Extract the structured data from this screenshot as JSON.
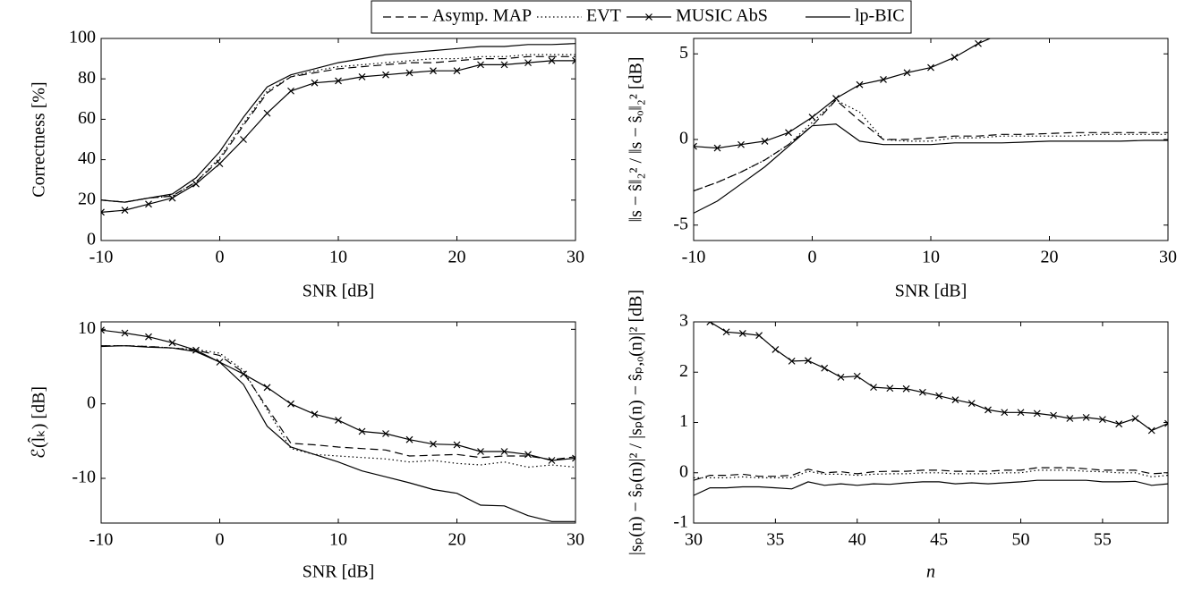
{
  "legend": [
    "Asymp. MAP",
    "EVT",
    "MUSIC AbS",
    "lp-BIC"
  ],
  "chart_data": [
    {
      "type": "line",
      "xlabel": "SNR [dB]",
      "ylabel": "Correctness [%]",
      "x": [
        -10,
        -8,
        -6,
        -4,
        -2,
        0,
        2,
        4,
        6,
        8,
        10,
        12,
        14,
        16,
        18,
        20,
        22,
        24,
        26,
        28,
        30
      ],
      "xlim": [
        -10,
        30
      ],
      "xticks": [
        -10,
        0,
        10,
        20,
        30
      ],
      "ylim": [
        0,
        100
      ],
      "yticks": [
        0,
        20,
        40,
        60,
        80,
        100
      ],
      "series": [
        {
          "color": "#000000",
          "dash": "dashed",
          "values": [
            20,
            19,
            21,
            22,
            29,
            40,
            57,
            73,
            81,
            83,
            85,
            86,
            87,
            88,
            88,
            89,
            90,
            90,
            91,
            91,
            91
          ]
        },
        {
          "color": "#000000",
          "dash": "dotted",
          "values": [
            20,
            19,
            21,
            22,
            29,
            41,
            58,
            74,
            81,
            84,
            86,
            87,
            88,
            89,
            90,
            90,
            91,
            91,
            92,
            92,
            92
          ]
        },
        {
          "color": "#000000",
          "dash": "solid",
          "marker": "x",
          "values": [
            14,
            15,
            18,
            21,
            28,
            38,
            50,
            63,
            74,
            78,
            79,
            81,
            82,
            83,
            84,
            84,
            87,
            87,
            88,
            89,
            89
          ]
        },
        {
          "color": "#000000",
          "dash": "solid",
          "values": [
            20,
            19,
            21,
            23,
            31,
            44,
            61,
            76,
            82,
            85,
            88,
            90,
            92,
            93,
            94,
            95,
            96,
            96,
            97,
            97,
            97.5
          ]
        }
      ]
    },
    {
      "type": "line",
      "xlabel": "SNR [dB]",
      "ylabel": "‖s − ŝ‖₂² / ‖s − ŝₒ‖₂² [dB]",
      "x": [
        -10,
        -8,
        -6,
        -4,
        -2,
        0,
        2,
        4,
        6,
        8,
        10,
        12,
        14,
        16,
        18,
        20,
        22,
        24,
        26,
        28,
        30
      ],
      "xlim": [
        -10,
        30
      ],
      "xticks": [
        -10,
        0,
        10,
        20,
        30
      ],
      "ylim": [
        -5.9,
        5.9
      ],
      "yticks": [
        -5,
        0,
        5
      ],
      "series": [
        {
          "color": "#000000",
          "dash": "dashed",
          "values": [
            -3.0,
            -2.5,
            -1.9,
            -1.2,
            -0.3,
            0.8,
            2.3,
            1.1,
            0,
            0,
            0.1,
            0.2,
            0.2,
            0.3,
            0.3,
            0.35,
            0.4,
            0.4,
            0.4,
            0.4,
            0.4
          ]
        },
        {
          "color": "#000000",
          "dash": "dotted",
          "values": [
            -3.0,
            -2.5,
            -1.9,
            -1.2,
            -0.3,
            1.0,
            2.3,
            1.6,
            0,
            -0.1,
            -0.1,
            0.1,
            0.1,
            0.2,
            0.2,
            0.2,
            0.2,
            0.3,
            0.3,
            0.3,
            0.3
          ]
        },
        {
          "color": "#000000",
          "dash": "solid",
          "marker": "x",
          "values": [
            -0.4,
            -0.5,
            -0.3,
            -0.1,
            0.4,
            1.3,
            2.4,
            3.2,
            3.5,
            3.9,
            4.2,
            4.8,
            5.6,
            6.2,
            null,
            null,
            null,
            null,
            null,
            null,
            null
          ]
        },
        {
          "color": "#000000",
          "dash": "solid",
          "values": [
            -4.3,
            -3.6,
            -2.6,
            -1.6,
            -0.4,
            0.8,
            0.9,
            -0.1,
            -0.3,
            -0.3,
            -0.3,
            -0.2,
            -0.2,
            -0.2,
            -0.15,
            -0.1,
            -0.1,
            -0.1,
            -0.1,
            -0.05,
            -0.05
          ]
        }
      ]
    },
    {
      "type": "line",
      "xlabel": "SNR [dB]",
      "ylabel": "ℰ(l̂ₖ) [dB]",
      "x": [
        -10,
        -8,
        -6,
        -4,
        -2,
        0,
        2,
        4,
        6,
        8,
        10,
        12,
        14,
        16,
        18,
        20,
        22,
        24,
        26,
        28,
        30
      ],
      "xlim": [
        -10,
        30
      ],
      "xticks": [
        -10,
        0,
        10,
        20,
        30
      ],
      "ylim": [
        -16,
        11
      ],
      "yticks": [
        -10,
        0,
        10
      ],
      "series": [
        {
          "color": "#000000",
          "dash": "dashed",
          "values": [
            7.8,
            7.8,
            7.7,
            7.5,
            7.2,
            6.5,
            4.2,
            -0.5,
            -5.3,
            -5.5,
            -5.8,
            -6.0,
            -6.2,
            -7.0,
            -6.9,
            -6.8,
            -7.2,
            -7.0,
            -7.0,
            -7.5,
            -7.1
          ]
        },
        {
          "color": "#000000",
          "dash": "dotted",
          "values": [
            7.8,
            7.8,
            7.7,
            7.5,
            7.3,
            6.8,
            4.5,
            -0.8,
            -6.0,
            -6.8,
            -7.0,
            -7.2,
            -7.4,
            -7.8,
            -7.6,
            -8.0,
            -8.2,
            -7.8,
            -8.5,
            -8.2,
            -8.5
          ]
        },
        {
          "color": "#000000",
          "dash": "solid",
          "marker": "x",
          "values": [
            9.9,
            9.5,
            9.0,
            8.2,
            7.2,
            5.6,
            4.0,
            2.2,
            0,
            -1.4,
            -2.2,
            -3.7,
            -4.0,
            -4.8,
            -5.4,
            -5.5,
            -6.4,
            -6.4,
            -6.8,
            -7.6,
            -7.3
          ]
        },
        {
          "color": "#000000",
          "dash": "solid",
          "values": [
            7.7,
            7.8,
            7.6,
            7.5,
            7.0,
            5.6,
            2.6,
            -3.0,
            -5.8,
            -6.8,
            -7.8,
            -9.0,
            -9.8,
            -10.6,
            -11.5,
            -12.0,
            -13.6,
            -13.7,
            -15.0,
            -15.8,
            -15.8
          ]
        }
      ]
    },
    {
      "type": "line",
      "xlabel": "n",
      "ylabel": "|sₚ(n) − ŝₚ(n)|² / |sₚ(n) − ŝₚ,ₒ(n)|² [dB]",
      "x": [
        30,
        31,
        32,
        33,
        34,
        35,
        36,
        37,
        38,
        39,
        40,
        41,
        42,
        43,
        44,
        45,
        46,
        47,
        48,
        49,
        50,
        51,
        52,
        53,
        54,
        55,
        56,
        57,
        58,
        59
      ],
      "xlim": [
        30,
        59
      ],
      "xticks": [
        30,
        35,
        40,
        45,
        50,
        55
      ],
      "ylim": [
        -1,
        3
      ],
      "yticks": [
        -1,
        0,
        1,
        2,
        3
      ],
      "series": [
        {
          "color": "#000000",
          "dash": "dashed",
          "values": [
            -0.15,
            -0.05,
            -0.05,
            -0.03,
            -0.07,
            -0.07,
            -0.05,
            0.07,
            0,
            0.02,
            -0.02,
            0.02,
            0.03,
            0.03,
            0.05,
            0.05,
            0.03,
            0.03,
            0.03,
            0.05,
            0.05,
            0.1,
            0.1,
            0.1,
            0.08,
            0.05,
            0.05,
            0.05,
            -0.02,
            0
          ]
        },
        {
          "color": "#000000",
          "dash": "dotted",
          "values": [
            -0.1,
            -0.1,
            -0.1,
            -0.08,
            -0.1,
            -0.1,
            -0.1,
            0.03,
            -0.03,
            -0.03,
            -0.05,
            -0.03,
            -0.02,
            -0.02,
            0,
            0,
            -0.02,
            -0.02,
            -0.02,
            0,
            0,
            0.05,
            0.05,
            0.05,
            0.03,
            0.02,
            0,
            0,
            -0.08,
            -0.05
          ]
        },
        {
          "color": "#000000",
          "dash": "solid",
          "marker": "x",
          "values": [
            3.3,
            3.0,
            2.8,
            2.77,
            2.73,
            2.45,
            2.22,
            2.23,
            2.08,
            1.9,
            1.92,
            1.7,
            1.68,
            1.67,
            1.6,
            1.53,
            1.45,
            1.38,
            1.25,
            1.2,
            1.2,
            1.18,
            1.14,
            1.08,
            1.1,
            1.06,
            0.97,
            1.08,
            0.84,
            0.98
          ]
        },
        {
          "color": "#000000",
          "dash": "solid",
          "values": [
            -0.45,
            -0.3,
            -0.3,
            -0.28,
            -0.28,
            -0.3,
            -0.32,
            -0.18,
            -0.25,
            -0.22,
            -0.25,
            -0.22,
            -0.23,
            -0.2,
            -0.18,
            -0.18,
            -0.22,
            -0.2,
            -0.22,
            -0.2,
            -0.18,
            -0.15,
            -0.15,
            -0.15,
            -0.15,
            -0.18,
            -0.18,
            -0.17,
            -0.25,
            -0.22
          ]
        }
      ]
    }
  ]
}
